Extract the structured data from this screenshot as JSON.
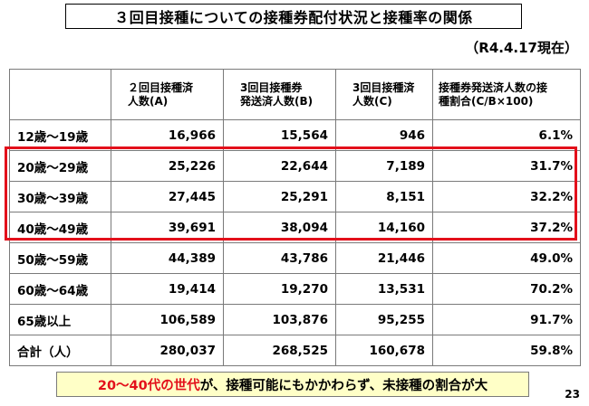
{
  "slide": {
    "title": "３回目接種についての接種券配付状況と接種率の関係",
    "date": "（R4.4.17現在）",
    "page_number": "23",
    "highlight_color": "#e3101b",
    "callout": {
      "emphasis": "20～40代の世代",
      "rest": "が、接種可能にもかかわらず、未接種の割合が大",
      "background": "#ffffc7"
    }
  },
  "table": {
    "headers": [
      "",
      "２回目接種済\n人数(A)",
      "3回目接種券\n発送済人数(B)",
      "3回目接種済\n人数(C)",
      "接種券発送済人数の接\n種割合(C/B×100)"
    ],
    "rows": [
      {
        "label": "12歳～19歳",
        "a": "16,966",
        "b": "15,564",
        "c": "946",
        "rate": "6.1%"
      },
      {
        "label": "20歳～29歳",
        "a": "25,226",
        "b": "22,644",
        "c": "7,189",
        "rate": "31.7%"
      },
      {
        "label": "30歳～39歳",
        "a": "27,445",
        "b": "25,291",
        "c": "8,151",
        "rate": "32.2%"
      },
      {
        "label": "40歳～49歳",
        "a": "39,691",
        "b": "38,094",
        "c": "14,160",
        "rate": "37.2%"
      },
      {
        "label": "50歳～59歳",
        "a": "44,389",
        "b": "43,786",
        "c": "21,446",
        "rate": "49.0%"
      },
      {
        "label": "60歳～64歳",
        "a": "19,414",
        "b": "19,270",
        "c": "13,531",
        "rate": "70.2%"
      },
      {
        "label": "65歳以上",
        "a": "106,589",
        "b": "103,876",
        "c": "95,255",
        "rate": "91.7%"
      },
      {
        "label": "合計（人）",
        "a": "280,037",
        "b": "268,525",
        "c": "160,678",
        "rate": "59.8%"
      }
    ]
  }
}
